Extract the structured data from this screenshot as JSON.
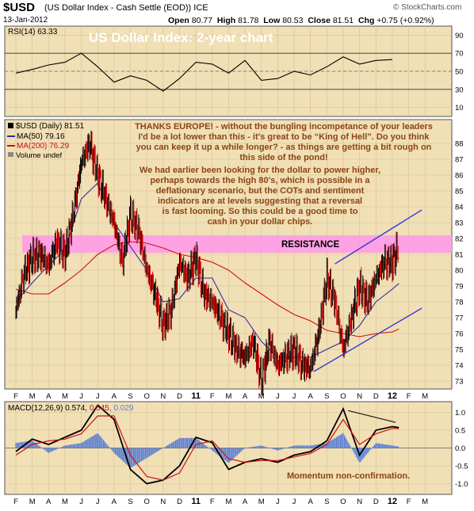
{
  "header": {
    "symbol": "$USD",
    "description": "(US Dollar Index - Cash Settle (EOD))",
    "exchange": "ICE",
    "watermark": "© StockCharts.com",
    "date": "13-Jan-2012",
    "open_label": "Open",
    "open": "80.77",
    "high_label": "High",
    "high": "81.78",
    "low_label": "Low",
    "low": "80.53",
    "close_label": "Close",
    "close": "81.51",
    "chg_label": "Chg",
    "chg": "+0.75 (+0.92%)"
  },
  "colors": {
    "panel_bg": "#f1dfb6",
    "grid": "#d6c190",
    "price": "#000000",
    "down_bar": "#cc0000",
    "ma50": "#2b2b9e",
    "ma200": "#cc1111",
    "resistance": "#ff9be8",
    "trendline": "#3b3bd6",
    "title_text": "#ffffff",
    "annotation_text": "#8b4513",
    "histogram": "#5b7fd6"
  },
  "chart_data": {
    "type": "line",
    "title": "US Dollar Index: 2-year chart",
    "x_axis_labels": [
      "F",
      "M",
      "A",
      "M",
      "J",
      "J",
      "A",
      "S",
      "O",
      "N",
      "D",
      "11",
      "F",
      "M",
      "A",
      "M",
      "J",
      "J",
      "A",
      "S",
      "O",
      "N",
      "D",
      "12",
      "F",
      "M"
    ],
    "rsi": {
      "label": "RSI(14)",
      "value": "63.33",
      "ylim": [
        0,
        100
      ],
      "yticks": [
        "90",
        "70",
        "50",
        "30",
        "10"
      ],
      "x": [
        0,
        1,
        2,
        3,
        4,
        5,
        6,
        7,
        8,
        9,
        10,
        11,
        12,
        13,
        14,
        15,
        16,
        17,
        18,
        19,
        20,
        21,
        22,
        23
      ],
      "values": [
        48,
        52,
        57,
        60,
        70,
        55,
        38,
        45,
        40,
        28,
        42,
        60,
        58,
        48,
        62,
        40,
        42,
        50,
        46,
        55,
        66,
        58,
        62,
        63
      ]
    },
    "price": {
      "label": "$USD (Daily) 81.51",
      "ylim": [
        72.5,
        89.5
      ],
      "yticks": [
        "88",
        "87",
        "86",
        "85",
        "84",
        "83",
        "82",
        "81",
        "80",
        "79",
        "78",
        "77",
        "76",
        "75",
        "74",
        "73"
      ],
      "x": [
        0,
        0.5,
        1,
        1.5,
        2,
        2.5,
        3,
        3.5,
        4,
        4.5,
        5,
        5.5,
        6,
        6.5,
        7,
        7.5,
        8,
        8.5,
        9,
        9.5,
        10,
        10.5,
        11,
        11.5,
        12,
        12.5,
        13,
        13.5,
        14,
        14.5,
        15,
        15.5,
        16,
        16.5,
        17,
        17.5,
        18,
        18.5,
        19,
        19.5,
        20,
        20.5,
        21,
        21.5,
        22,
        22.5,
        23,
        23.4
      ],
      "values": [
        77.5,
        79.8,
        80.8,
        81.0,
        80.3,
        81.8,
        81.0,
        83.5,
        86.8,
        88.0,
        86.0,
        84.5,
        83.0,
        80.5,
        83.5,
        82.5,
        80.0,
        78.5,
        76.5,
        77.5,
        80.5,
        79.5,
        80.8,
        78.5,
        78.0,
        77.0,
        76.0,
        75.0,
        74.5,
        75.5,
        73.0,
        75.5,
        74.0,
        74.5,
        75.0,
        74.0,
        73.8,
        76.0,
        79.5,
        78.0,
        75.0,
        77.0,
        79.0,
        78.0,
        79.5,
        80.5,
        80.5,
        81.5
      ],
      "series": [
        {
          "name": "MA(50) 79.16",
          "x": [
            0,
            1,
            2,
            3,
            4,
            5,
            6,
            7,
            8,
            9,
            10,
            11,
            12,
            13,
            14,
            15,
            16,
            17,
            18,
            19,
            20,
            21,
            22,
            23,
            23.4
          ],
          "values": [
            78.0,
            79.2,
            80.3,
            81.3,
            84.5,
            85.5,
            83.0,
            81.5,
            80.0,
            78.0,
            78.2,
            79.5,
            79.5,
            77.5,
            77.0,
            75.5,
            74.5,
            74.5,
            74.5,
            75.0,
            75.5,
            76.5,
            78.0,
            78.8,
            79.16
          ]
        },
        {
          "name": "MA(200) 76.29",
          "x": [
            0,
            1,
            2,
            3,
            4,
            5,
            6,
            7,
            8,
            9,
            10,
            11,
            12,
            13,
            14,
            15,
            16,
            17,
            18,
            19,
            20,
            21,
            22,
            23,
            23.4
          ],
          "values": [
            78.8,
            78.5,
            78.5,
            79.2,
            80.0,
            81.0,
            81.6,
            81.8,
            81.7,
            81.4,
            81.0,
            80.8,
            80.5,
            80.0,
            79.2,
            78.5,
            77.8,
            77.2,
            76.8,
            76.2,
            76.0,
            75.8,
            76.0,
            76.1,
            76.29
          ]
        }
      ],
      "volume_label": "Volume undef",
      "resistance": {
        "label": "RESISTANCE",
        "low": 81.1,
        "high": 82.2
      },
      "trendlines": [
        {
          "x": [
            19.5,
            24.8
          ],
          "values": [
            80.4,
            83.8
          ]
        },
        {
          "x": [
            18.2,
            24.8
          ],
          "values": [
            73.6,
            77.6
          ]
        }
      ]
    },
    "macd": {
      "label": "MACD(12,26,9)",
      "values_label": [
        "0.574",
        "0.545",
        "0.029"
      ],
      "ylim": [
        -1.3,
        1.3
      ],
      "yticks": [
        "1.0",
        "0.5",
        "0.0",
        "-0.5",
        "-1.0"
      ],
      "x": [
        0,
        1,
        2,
        3,
        4,
        5,
        6,
        7,
        8,
        9,
        10,
        11,
        12,
        13,
        14,
        15,
        16,
        17,
        18,
        19,
        20,
        21,
        22,
        23,
        23.4
      ],
      "macd_values": [
        -0.1,
        0.25,
        0.1,
        0.3,
        0.5,
        1.2,
        0.8,
        -0.6,
        -1.0,
        -0.9,
        -0.5,
        0.3,
        0.15,
        -0.6,
        -0.4,
        -0.3,
        -0.4,
        -0.2,
        -0.1,
        0.2,
        1.1,
        -0.2,
        0.5,
        0.6,
        0.574
      ],
      "signal_values": [
        -0.2,
        0.1,
        0.2,
        0.25,
        0.4,
        0.9,
        0.9,
        -0.2,
        -0.8,
        -0.9,
        -0.7,
        0.1,
        0.2,
        -0.3,
        -0.4,
        -0.35,
        -0.35,
        -0.25,
        -0.15,
        0.1,
        0.8,
        0.1,
        0.4,
        0.55,
        0.545
      ],
      "divergence_line": {
        "x": [
          20.3,
          23.2
        ],
        "values": [
          1.05,
          0.72
        ]
      }
    }
  },
  "annotations": {
    "main_lines": [
      "THANKS EUROPE! - without the bungling incompetance of your leaders",
      "I'd be a lot lower than this  - it's great to be “King of Hell”. Do you think",
      "you can keep it up a while longer? - as things are getting a bit rough on",
      "this side of the pond!"
    ],
    "second_lines": [
      "We had earlier been looking for the dollar to power higher,",
      "perhaps towards the high 80's, which is possible in a",
      "deflationary scenario, but the COTs and sentiment",
      "indicators are at levels suggesting that a reversal",
      "is fast looming. So this could be a good time to",
      "cash in your dollar chips."
    ],
    "momentum": "Momentum non-confirmation."
  }
}
